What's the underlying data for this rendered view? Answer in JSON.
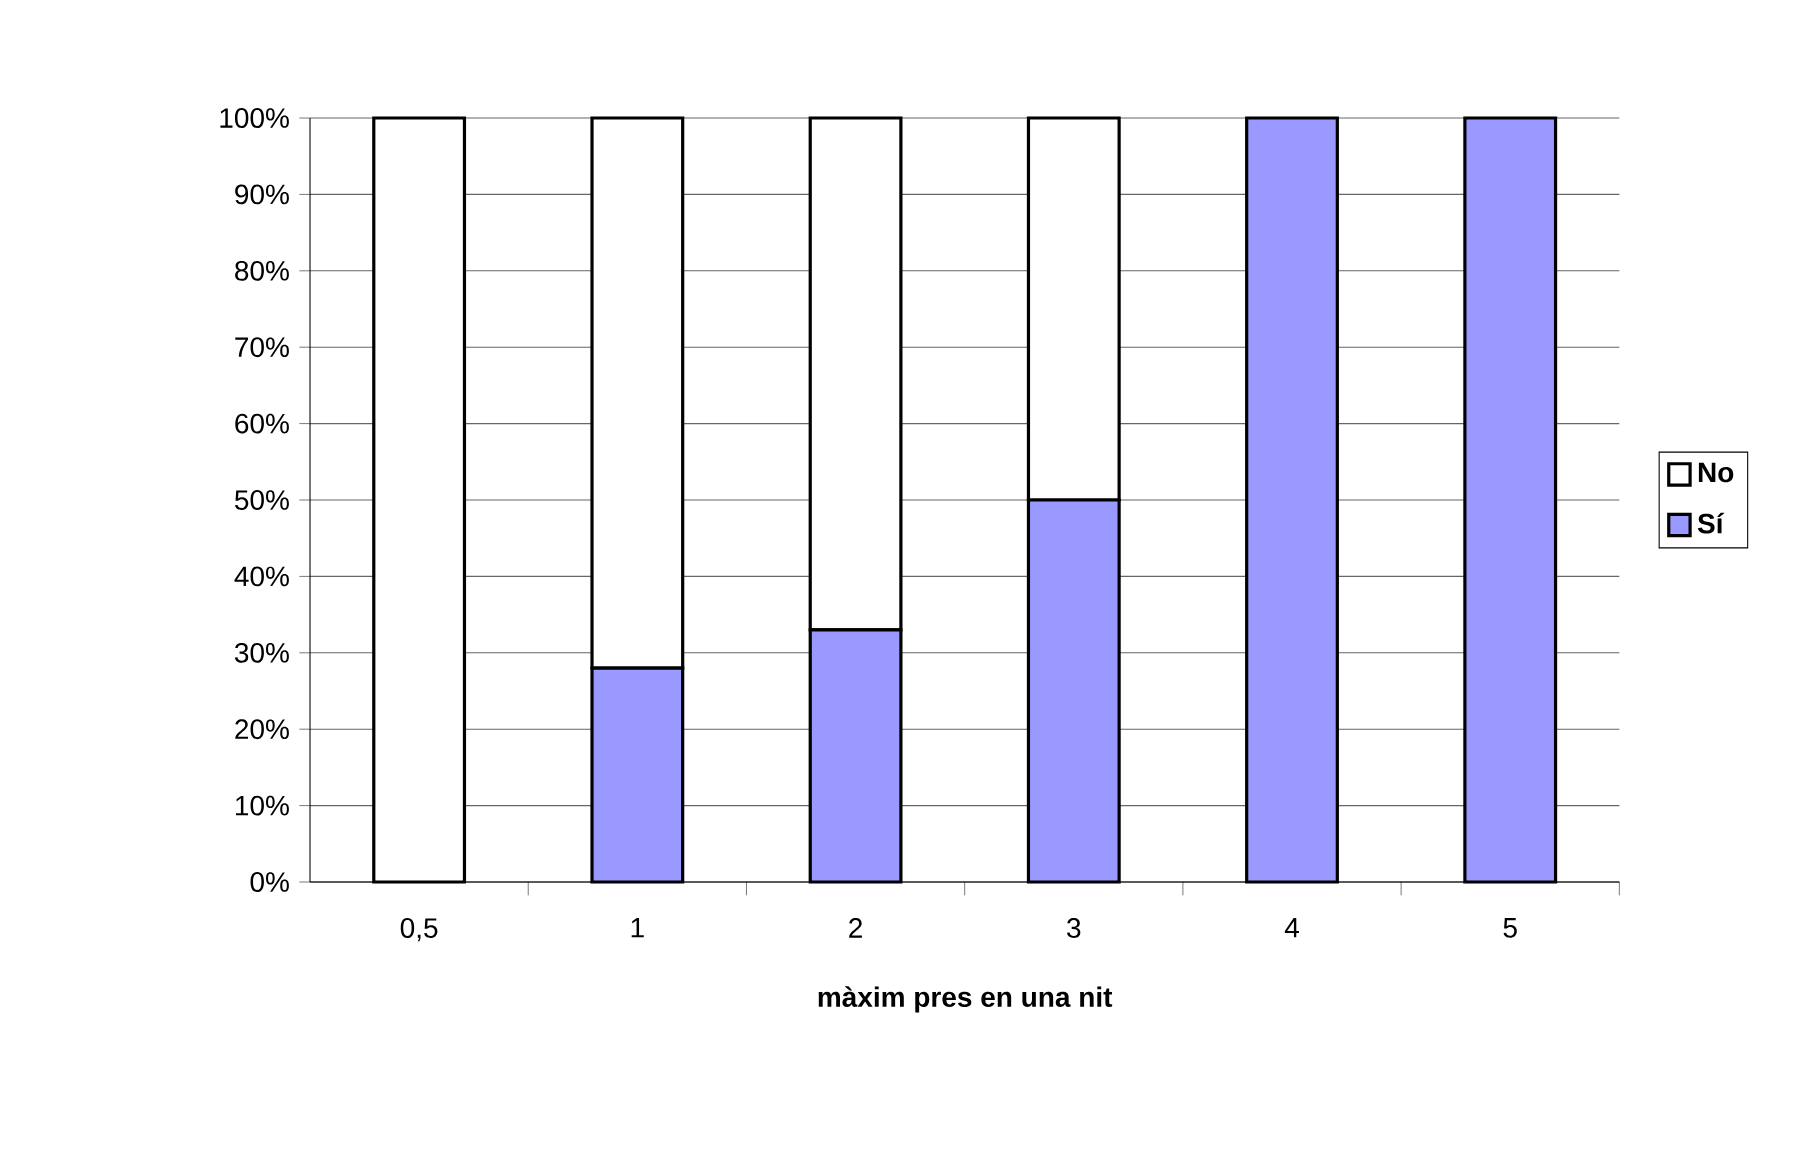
{
  "chart_data": {
    "type": "bar",
    "stacked": true,
    "xlabel": "màxim pres en una nit",
    "categories": [
      "0,5",
      "1",
      "2",
      "3",
      "4",
      "5"
    ],
    "series": [
      {
        "name": "Sí",
        "color": "#9999ff",
        "values": [
          0,
          28,
          33,
          50,
          100,
          100
        ]
      },
      {
        "name": "No",
        "color": "#ffffff",
        "values": [
          100,
          72,
          67,
          50,
          0,
          0
        ]
      }
    ],
    "ylim": [
      0,
      100
    ],
    "yticks": [
      {
        "value": 0,
        "label": "0%"
      },
      {
        "value": 10,
        "label": "10%"
      },
      {
        "value": 20,
        "label": "20%"
      },
      {
        "value": 30,
        "label": "30%"
      },
      {
        "value": 40,
        "label": "40%"
      },
      {
        "value": 50,
        "label": "50%"
      },
      {
        "value": 60,
        "label": "60%"
      },
      {
        "value": 70,
        "label": "70%"
      },
      {
        "value": 80,
        "label": "80%"
      },
      {
        "value": 90,
        "label": "90%"
      },
      {
        "value": 100,
        "label": "100%"
      }
    ],
    "grid": "y",
    "legend": "right"
  }
}
